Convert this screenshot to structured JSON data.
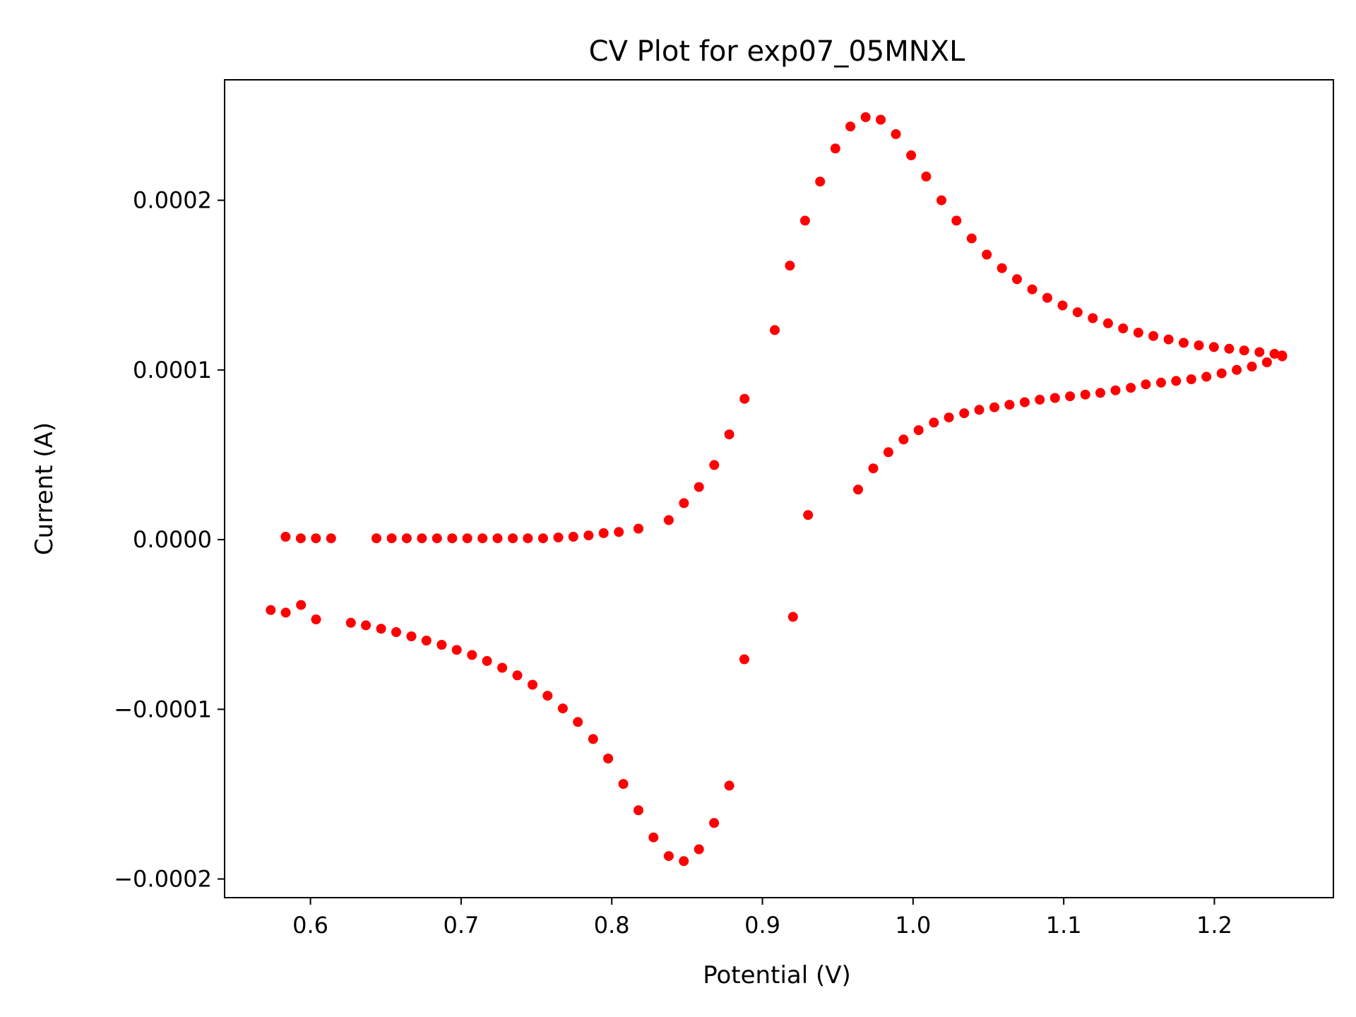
{
  "chart_data": {
    "type": "scatter",
    "title": "CV Plot for exp07_05MNXL",
    "xlabel": "Potential (V)",
    "ylabel": "Current (A)",
    "xlim": [
      0.543,
      1.279
    ],
    "ylim": [
      -0.000211,
      0.000271
    ],
    "xticks": [
      {
        "value": 0.6,
        "label": "0.6"
      },
      {
        "value": 0.7,
        "label": "0.7"
      },
      {
        "value": 0.8,
        "label": "0.8"
      },
      {
        "value": 0.9,
        "label": "0.9"
      },
      {
        "value": 1.0,
        "label": "1.0"
      },
      {
        "value": 1.1,
        "label": "1.1"
      },
      {
        "value": 1.2,
        "label": "1.2"
      }
    ],
    "yticks": [
      {
        "value": -0.0002,
        "label": "−0.0002"
      },
      {
        "value": -0.0001,
        "label": "−0.0001"
      },
      {
        "value": 0.0,
        "label": "0.0000"
      },
      {
        "value": 0.0001,
        "label": "0.0001"
      },
      {
        "value": 0.0002,
        "label": "0.0002"
      }
    ],
    "grid": false,
    "legend": "none",
    "marker_color": "#ff0000",
    "series": [
      {
        "x": [
          0.5835,
          0.5936,
          0.6036,
          0.6137,
          0.6438,
          0.6539,
          0.6639,
          0.674,
          0.684,
          0.6941,
          0.7041,
          0.7142,
          0.7242,
          0.7343,
          0.7443,
          0.7544,
          0.7645,
          0.7745,
          0.7846,
          0.7946,
          0.8047,
          0.8177,
          0.8378,
          0.8479,
          0.8579,
          0.868,
          0.878,
          0.8881,
          0.9082,
          0.9182,
          0.9283,
          0.9383,
          0.9484,
          0.9584,
          0.9685,
          0.9785,
          0.9886,
          0.9987,
          1.0087,
          1.0188,
          1.0288,
          1.0389,
          1.0489,
          1.059,
          1.069,
          1.0791,
          1.0891,
          1.0992,
          1.1092,
          1.1193,
          1.1294,
          1.1394,
          1.1495,
          1.1595,
          1.1696,
          1.1796,
          1.1897,
          1.1997,
          1.2098,
          1.2198,
          1.2299,
          1.2399,
          1.245
        ],
        "y": [
          1.7e-06,
          8e-07,
          8e-07,
          8e-07,
          8e-07,
          8e-07,
          8e-07,
          8e-07,
          8e-07,
          8e-07,
          8e-07,
          8e-07,
          8e-07,
          8e-07,
          8e-07,
          8e-07,
          1.3e-06,
          1.7e-06,
          2.5e-06,
          3.8e-06,
          4.5e-06,
          6.5e-06,
          1.15e-05,
          2.15e-05,
          3.1e-05,
          4.4e-05,
          6.2e-05,
          8.3e-05,
          0.0001235,
          0.0001615,
          0.000188,
          0.000211,
          0.0002305,
          0.0002435,
          0.000249,
          0.0002475,
          0.000239,
          0.0002265,
          0.000214,
          0.0002,
          0.000188,
          0.0001775,
          0.000168,
          0.00016,
          0.0001535,
          0.0001475,
          0.0001425,
          0.000138,
          0.000134,
          0.0001305,
          0.0001275,
          0.0001245,
          0.000122,
          0.00012,
          0.000118,
          0.000116,
          0.0001145,
          0.0001135,
          0.0001125,
          0.0001115,
          0.0001105,
          0.0001095,
          0.0001085
        ]
      },
      {
        "x": [
          1.245,
          1.2349,
          1.2249,
          1.2148,
          1.2048,
          1.1947,
          1.1847,
          1.1746,
          1.1646,
          1.1545,
          1.1445,
          1.1344,
          1.1243,
          1.1143,
          1.1042,
          1.0942,
          1.0841,
          1.0741,
          1.064,
          1.054,
          1.0439,
          1.0339,
          1.0238,
          1.0138,
          1.0037,
          0.9937,
          0.9836,
          0.9736,
          0.9635,
          0.9303,
          0.9203,
          0.888,
          0.878,
          0.8679,
          0.8579,
          0.8478,
          0.8378,
          0.8277,
          0.8177,
          0.8077,
          0.7976,
          0.7876,
          0.7775,
          0.7675,
          0.7574,
          0.7474,
          0.7373,
          0.7273,
          0.7172,
          0.7072,
          0.6971,
          0.6871,
          0.677,
          0.667,
          0.6569,
          0.6469,
          0.6368,
          0.6268,
          0.6037,
          0.5937,
          0.5836,
          0.5736
        ],
        "y": [
          0.000108,
          0.0001045,
          0.000102,
          0.0001,
          9.8e-05,
          9.6e-05,
          9.45e-05,
          9.35e-05,
          9.25e-05,
          9.15e-05,
          8.95e-05,
          8.8e-05,
          8.65e-05,
          8.55e-05,
          8.45e-05,
          8.35e-05,
          8.25e-05,
          8.1e-05,
          7.95e-05,
          7.8e-05,
          7.65e-05,
          7.45e-05,
          7.2e-05,
          6.9e-05,
          6.45e-05,
          5.9e-05,
          5.15e-05,
          4.2e-05,
          2.95e-05,
          1.45e-05,
          -4.55e-05,
          -7.05e-05,
          -0.000145,
          -0.000167,
          -0.0001825,
          -0.0001895,
          -0.0001865,
          -0.0001755,
          -0.0001595,
          -0.000144,
          -0.000129,
          -0.0001175,
          -0.0001075,
          -9.95e-05,
          -9.2e-05,
          -8.55e-05,
          -8e-05,
          -7.55e-05,
          -7.15e-05,
          -6.8e-05,
          -6.5e-05,
          -6.2e-05,
          -5.95e-05,
          -5.7e-05,
          -5.45e-05,
          -5.25e-05,
          -5.05e-05,
          -4.9e-05,
          -4.7e-05,
          -3.85e-05,
          -4.3e-05,
          -4.15e-05
        ]
      }
    ]
  }
}
